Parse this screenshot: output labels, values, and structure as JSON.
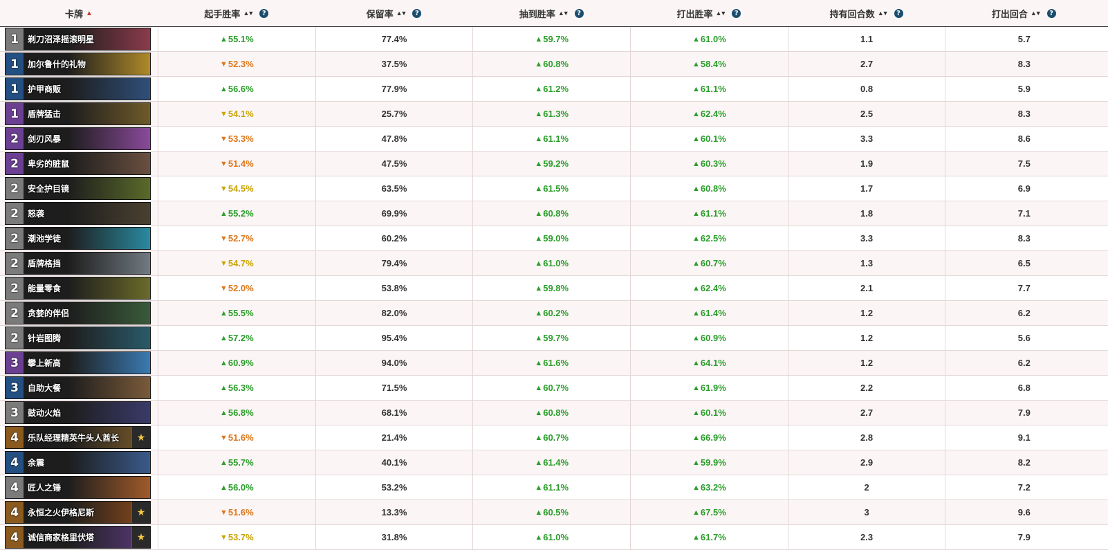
{
  "headers": {
    "card": "卡牌",
    "mulligan_wr": "起手胜率",
    "keep_pct": "保留率",
    "drawn_wr": "抽到胜率",
    "played_wr": "打出胜率",
    "turns_held": "持有回合数",
    "turn_played": "打出回合"
  },
  "colors": {
    "up": "#2a9d2a",
    "down_orange": "#e0761a",
    "down_yellow": "#c9a400",
    "help_icon": "#1a4d6e"
  },
  "rows": [
    {
      "cost": "1",
      "cost_color": "gray",
      "name": "剃刀沼泽摇滚明星",
      "legendary": false,
      "art": "#8a3b4a",
      "mull": "55.1%",
      "mull_dir": "up",
      "keep": "77.4%",
      "drawn": "59.7%",
      "played": "61.0%",
      "held": "1.1",
      "turn": "5.7"
    },
    {
      "cost": "1",
      "cost_color": "blue",
      "name": "加尔鲁什的礼物",
      "legendary": false,
      "art": "#b08a2a",
      "mull": "52.3%",
      "mull_dir": "down-orange",
      "keep": "37.5%",
      "drawn": "60.8%",
      "played": "58.4%",
      "held": "2.7",
      "turn": "8.3"
    },
    {
      "cost": "1",
      "cost_color": "blue",
      "name": "护甲商贩",
      "legendary": false,
      "art": "#2f4f7a",
      "mull": "56.6%",
      "mull_dir": "up",
      "keep": "77.9%",
      "drawn": "61.2%",
      "played": "61.1%",
      "held": "0.8",
      "turn": "5.9"
    },
    {
      "cost": "1",
      "cost_color": "purple",
      "name": "盾牌猛击",
      "legendary": false,
      "art": "#6f5a2a",
      "mull": "54.1%",
      "mull_dir": "down-yellow",
      "keep": "25.7%",
      "drawn": "61.3%",
      "played": "62.4%",
      "held": "2.5",
      "turn": "8.3"
    },
    {
      "cost": "2",
      "cost_color": "purple",
      "name": "剑刃风暴",
      "legendary": false,
      "art": "#8a4a9a",
      "mull": "53.3%",
      "mull_dir": "down-orange",
      "keep": "47.8%",
      "drawn": "61.1%",
      "played": "60.1%",
      "held": "3.3",
      "turn": "8.6"
    },
    {
      "cost": "2",
      "cost_color": "purple",
      "name": "卑劣的脏鼠",
      "legendary": false,
      "art": "#6a5040",
      "mull": "51.4%",
      "mull_dir": "down-orange",
      "keep": "47.5%",
      "drawn": "59.2%",
      "played": "60.3%",
      "held": "1.9",
      "turn": "7.5"
    },
    {
      "cost": "2",
      "cost_color": "gray",
      "name": "安全护目镜",
      "legendary": false,
      "art": "#5a6a2a",
      "mull": "54.5%",
      "mull_dir": "down-yellow",
      "keep": "63.5%",
      "drawn": "61.5%",
      "played": "60.8%",
      "held": "1.7",
      "turn": "6.9"
    },
    {
      "cost": "2",
      "cost_color": "gray",
      "name": "怒袭",
      "legendary": false,
      "art": "#4a4030",
      "mull": "55.2%",
      "mull_dir": "up",
      "keep": "69.9%",
      "drawn": "60.8%",
      "played": "61.1%",
      "held": "1.8",
      "turn": "7.1"
    },
    {
      "cost": "2",
      "cost_color": "gray",
      "name": "潮池学徒",
      "legendary": false,
      "art": "#2a8aa0",
      "mull": "52.7%",
      "mull_dir": "down-orange",
      "keep": "60.2%",
      "drawn": "59.0%",
      "played": "62.5%",
      "held": "3.3",
      "turn": "8.3"
    },
    {
      "cost": "2",
      "cost_color": "gray",
      "name": "盾牌格挡",
      "legendary": false,
      "art": "#707a80",
      "mull": "54.7%",
      "mull_dir": "down-yellow",
      "keep": "79.4%",
      "drawn": "61.0%",
      "played": "60.7%",
      "held": "1.3",
      "turn": "6.5"
    },
    {
      "cost": "2",
      "cost_color": "gray",
      "name": "能量零食",
      "legendary": false,
      "art": "#6a6a2a",
      "mull": "52.0%",
      "mull_dir": "down-orange",
      "keep": "53.8%",
      "drawn": "59.8%",
      "played": "62.4%",
      "held": "2.1",
      "turn": "7.7"
    },
    {
      "cost": "2",
      "cost_color": "gray",
      "name": "贪婪的伴侣",
      "legendary": false,
      "art": "#3a5a3a",
      "mull": "55.5%",
      "mull_dir": "up",
      "keep": "82.0%",
      "drawn": "60.2%",
      "played": "61.4%",
      "held": "1.2",
      "turn": "6.2"
    },
    {
      "cost": "2",
      "cost_color": "gray",
      "name": "针岩图腾",
      "legendary": false,
      "art": "#2a5a6a",
      "mull": "57.2%",
      "mull_dir": "up",
      "keep": "95.4%",
      "drawn": "59.7%",
      "played": "60.9%",
      "held": "1.2",
      "turn": "5.6"
    },
    {
      "cost": "3",
      "cost_color": "purple",
      "name": "攀上新高",
      "legendary": false,
      "art": "#3a7ab0",
      "mull": "60.9%",
      "mull_dir": "up",
      "keep": "94.0%",
      "drawn": "61.6%",
      "played": "64.1%",
      "held": "1.2",
      "turn": "6.2"
    },
    {
      "cost": "3",
      "cost_color": "blue",
      "name": "自助大餐",
      "legendary": false,
      "art": "#7a5a3a",
      "mull": "56.3%",
      "mull_dir": "up",
      "keep": "71.5%",
      "drawn": "60.7%",
      "played": "61.9%",
      "held": "2.2",
      "turn": "6.8"
    },
    {
      "cost": "3",
      "cost_color": "gray",
      "name": "鼓动火焰",
      "legendary": false,
      "art": "#3a3a6a",
      "mull": "56.8%",
      "mull_dir": "up",
      "keep": "68.1%",
      "drawn": "60.8%",
      "played": "60.1%",
      "held": "2.7",
      "turn": "7.9"
    },
    {
      "cost": "4",
      "cost_color": "orange",
      "name": "乐队经理精英牛头人酋长",
      "legendary": true,
      "art": "#7a5a2a",
      "mull": "51.6%",
      "mull_dir": "down-orange",
      "keep": "21.4%",
      "drawn": "60.7%",
      "played": "66.9%",
      "held": "2.8",
      "turn": "9.1"
    },
    {
      "cost": "4",
      "cost_color": "blue",
      "name": "余震",
      "legendary": false,
      "art": "#3a5a8a",
      "mull": "55.7%",
      "mull_dir": "up",
      "keep": "40.1%",
      "drawn": "61.4%",
      "played": "59.9%",
      "held": "2.9",
      "turn": "8.2"
    },
    {
      "cost": "4",
      "cost_color": "gray",
      "name": "匠人之锤",
      "legendary": false,
      "art": "#a05a2a",
      "mull": "56.0%",
      "mull_dir": "up",
      "keep": "53.2%",
      "drawn": "61.1%",
      "played": "63.2%",
      "held": "2",
      "turn": "7.2"
    },
    {
      "cost": "4",
      "cost_color": "orange",
      "name": "永恒之火伊格尼斯",
      "legendary": true,
      "art": "#8a4a1a",
      "mull": "51.6%",
      "mull_dir": "down-orange",
      "keep": "13.3%",
      "drawn": "60.5%",
      "played": "67.5%",
      "held": "3",
      "turn": "9.6"
    },
    {
      "cost": "4",
      "cost_color": "orange",
      "name": "诚信商家格里伏塔",
      "legendary": true,
      "art": "#5a3a7a",
      "mull": "53.7%",
      "mull_dir": "down-yellow",
      "keep": "31.8%",
      "drawn": "61.0%",
      "played": "61.7%",
      "held": "2.3",
      "turn": "7.9"
    }
  ]
}
